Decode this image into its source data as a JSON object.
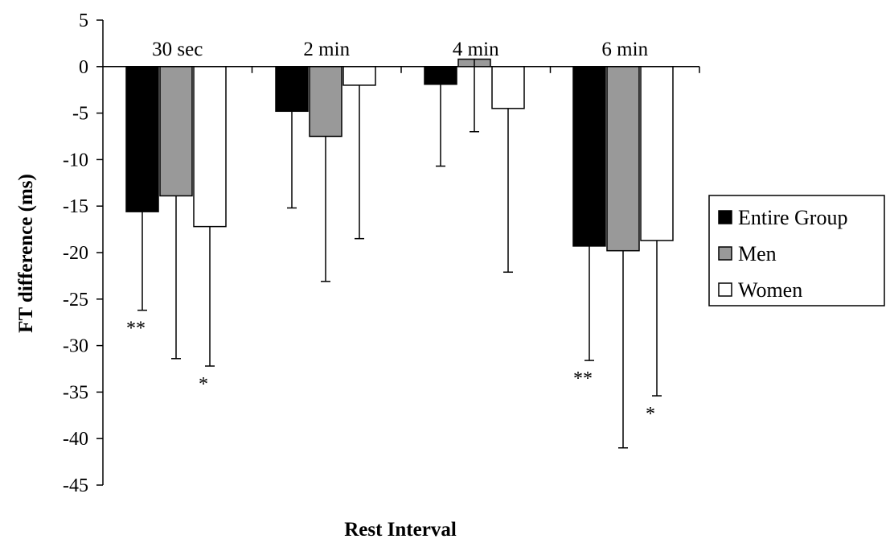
{
  "chart_data": {
    "type": "bar",
    "title": "",
    "xlabel": "Rest Interval",
    "ylabel": "FT difference (ms)",
    "ylim": [
      -45,
      5
    ],
    "yticks": [
      "5",
      "0",
      "-5",
      "-10",
      "-15",
      "-20",
      "-25",
      "-30",
      "-35",
      "-40",
      "-45"
    ],
    "categories": [
      "30 sec",
      "2 min",
      "4 min",
      "6 min"
    ],
    "series": [
      {
        "name": "Entire Group",
        "color": "#000000",
        "values": [
          -15.6,
          -4.8,
          -1.9,
          -19.3
        ],
        "error": [
          10.6,
          10.4,
          8.8,
          12.3
        ],
        "significance": [
          "**",
          "",
          "",
          "**"
        ]
      },
      {
        "name": "Men",
        "color": "#999999",
        "values": [
          -13.9,
          -7.5,
          0.8,
          -19.8
        ],
        "error": [
          17.5,
          15.6,
          7.8,
          21.2
        ],
        "significance": [
          "",
          "",
          "",
          ""
        ]
      },
      {
        "name": "Women",
        "color": "#ffffff",
        "values": [
          -17.2,
          -2.0,
          -4.5,
          -18.7
        ],
        "error": [
          15.0,
          16.5,
          17.6,
          16.7
        ],
        "significance": [
          "*",
          "",
          "",
          "*"
        ]
      }
    ],
    "legend_position": "right",
    "grid": false
  }
}
